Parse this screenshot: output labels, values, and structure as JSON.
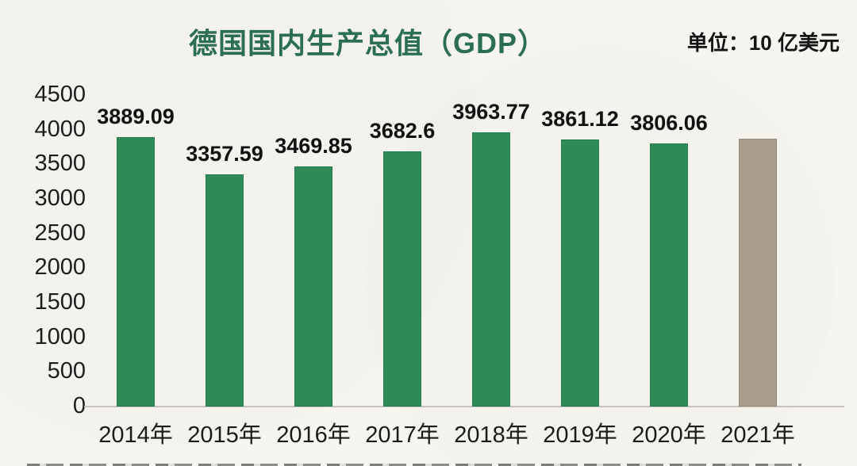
{
  "header": {
    "title": "德国国内生产总值（GDP）",
    "unit_label": "单位：10 亿美元"
  },
  "chart_data": {
    "type": "bar",
    "title": "德国国内生产总值（GDP）",
    "unit": "10 亿美元",
    "categories": [
      "2014年",
      "2015年",
      "2016年",
      "2017年",
      "2018年",
      "2019年",
      "2020年",
      "2021年"
    ],
    "values": [
      3889.09,
      3357.59,
      3469.85,
      3682.6,
      3963.77,
      3861.12,
      3806.06,
      3870
    ],
    "value_labels": [
      "3889.09",
      "3357.59",
      "3469.85",
      "3682.6",
      "3963.77",
      "3861.12",
      "3806.06",
      ""
    ],
    "ylabel": "",
    "xlabel": "",
    "ylim": [
      0,
      4500
    ],
    "ytick_step": 500,
    "yticks": [
      4500,
      4000,
      3500,
      3000,
      2500,
      2000,
      1500,
      1000,
      500,
      0
    ],
    "grid": false,
    "legend_position": "none",
    "bar_colors": [
      "#2e8a58",
      "#2e8a58",
      "#2e8a58",
      "#2e8a58",
      "#2e8a58",
      "#2e8a58",
      "#2e8a58",
      "#a99c8b"
    ]
  },
  "colors": {
    "bar_green": "#2e8a58",
    "bar_2021_tan": "#a99c8b",
    "title_green": "#2c6e52",
    "text": "#1b1b1b",
    "axis_line": "#c9c4bb",
    "background": "#f6f5f0"
  }
}
